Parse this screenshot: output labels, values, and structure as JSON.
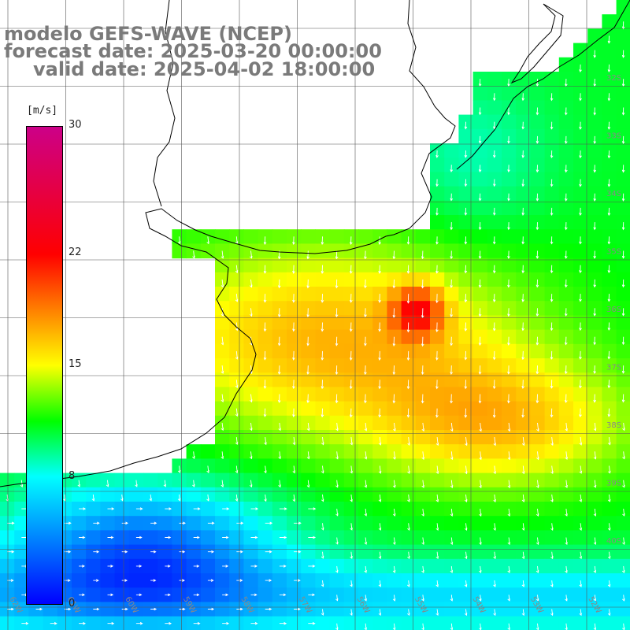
{
  "title": {
    "line1": "modelo GEFS-WAVE (NCEP)",
    "line2": "forecast date: 2025-03-20 00:00:00",
    "line3": "valid date: 2025-04-02 18:00:00"
  },
  "colorbar": {
    "unit": "[m/s]",
    "ticks": [
      "30",
      "22",
      "15",
      "8",
      "0"
    ],
    "tick_values": [
      30,
      22,
      15,
      8,
      0
    ],
    "min": 0,
    "max": 30,
    "colors": [
      "#0000ff",
      "#00ffff",
      "#00ff00",
      "#ffff00",
      "#ff0000",
      "#cc0088"
    ]
  },
  "map": {
    "variable": "wind speed",
    "field_range": [
      0,
      30
    ],
    "land_color": "#ffffff",
    "coastline_color": "#000000",
    "grid_color": "#404040",
    "lat_labels": [
      "32S",
      "33S",
      "34S",
      "35S",
      "36S",
      "37S",
      "38S",
      "39S",
      "40S"
    ],
    "lon_labels": [
      "62W",
      "61W",
      "60W",
      "59W",
      "58W",
      "57W",
      "56W",
      "55W",
      "54W",
      "53W",
      "52W"
    ]
  }
}
